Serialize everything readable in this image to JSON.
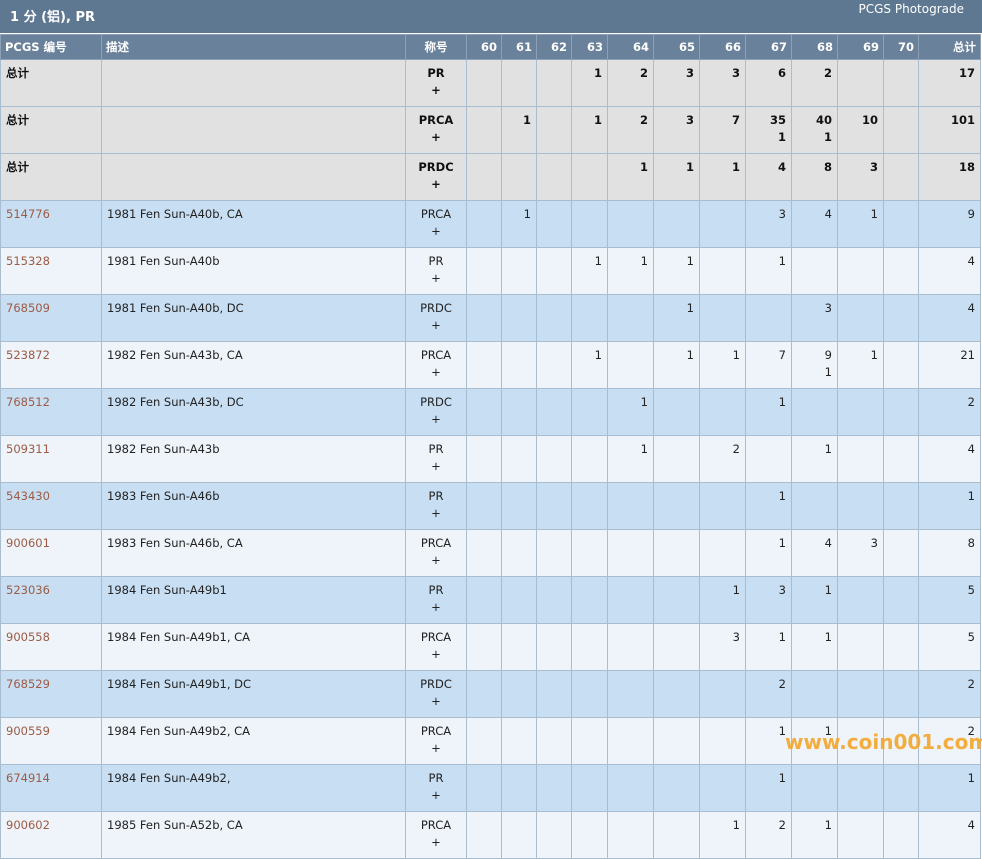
{
  "header": {
    "title": "1 分 (铝), PR",
    "link": "PCGS Photograde"
  },
  "columns": [
    "PCGS 编号",
    "描述",
    "称号",
    60,
    61,
    62,
    63,
    64,
    65,
    66,
    67,
    68,
    69,
    70,
    "总计"
  ],
  "total_rows": [
    {
      "label": "总计",
      "designation": "PR",
      "plus": "+",
      "grades": [
        null,
        null,
        null,
        1,
        2,
        3,
        3,
        6,
        2,
        null,
        null
      ],
      "total": 17
    },
    {
      "label": "总计",
      "designation": "PRCA",
      "plus": "+",
      "grades": [
        null,
        1,
        null,
        1,
        2,
        3,
        7,
        [
          35,
          1
        ],
        [
          40,
          1
        ],
        10,
        null
      ],
      "total": 101
    },
    {
      "label": "总计",
      "designation": "PRDC",
      "plus": "+",
      "grades": [
        null,
        null,
        null,
        null,
        1,
        1,
        1,
        4,
        8,
        3,
        null
      ],
      "total": 18
    }
  ],
  "rows": [
    {
      "code": "514776",
      "description": "1981 Fen Sun-A40b, CA",
      "designation": "PRCA",
      "plus": "+",
      "grades": [
        null,
        1,
        null,
        null,
        null,
        null,
        null,
        3,
        4,
        1,
        null
      ],
      "total": 9
    },
    {
      "code": "515328",
      "description": "1981 Fen Sun-A40b",
      "designation": "PR",
      "plus": "+",
      "grades": [
        null,
        null,
        null,
        1,
        1,
        1,
        null,
        1,
        null,
        null,
        null
      ],
      "total": 4
    },
    {
      "code": "768509",
      "description": "1981 Fen Sun-A40b, DC",
      "designation": "PRDC",
      "plus": "+",
      "grades": [
        null,
        null,
        null,
        null,
        null,
        1,
        null,
        null,
        3,
        null,
        null
      ],
      "total": 4
    },
    {
      "code": "523872",
      "description": "1982 Fen Sun-A43b, CA",
      "designation": "PRCA",
      "plus": "+",
      "grades": [
        null,
        null,
        null,
        1,
        null,
        1,
        1,
        7,
        [
          9,
          1
        ],
        1,
        null
      ],
      "total": 21
    },
    {
      "code": "768512",
      "description": "1982 Fen Sun-A43b, DC",
      "designation": "PRDC",
      "plus": "+",
      "grades": [
        null,
        null,
        null,
        null,
        1,
        null,
        null,
        1,
        null,
        null,
        null
      ],
      "total": 2
    },
    {
      "code": "509311",
      "description": "1982 Fen Sun-A43b",
      "designation": "PR",
      "plus": "+",
      "grades": [
        null,
        null,
        null,
        null,
        1,
        null,
        2,
        null,
        1,
        null,
        null
      ],
      "total": 4
    },
    {
      "code": "543430",
      "description": "1983 Fen Sun-A46b",
      "designation": "PR",
      "plus": "+",
      "grades": [
        null,
        null,
        null,
        null,
        null,
        null,
        null,
        1,
        null,
        null,
        null
      ],
      "total": 1
    },
    {
      "code": "900601",
      "description": "1983 Fen Sun-A46b, CA",
      "designation": "PRCA",
      "plus": "+",
      "grades": [
        null,
        null,
        null,
        null,
        null,
        null,
        null,
        1,
        4,
        3,
        null
      ],
      "total": 8
    },
    {
      "code": "523036",
      "description": "1984 Fen Sun-A49b1",
      "designation": "PR",
      "plus": "+",
      "grades": [
        null,
        null,
        null,
        null,
        null,
        null,
        1,
        3,
        1,
        null,
        null
      ],
      "total": 5
    },
    {
      "code": "900558",
      "description": "1984 Fen Sun-A49b1, CA",
      "designation": "PRCA",
      "plus": "+",
      "grades": [
        null,
        null,
        null,
        null,
        null,
        null,
        3,
        1,
        1,
        null,
        null
      ],
      "total": 5
    },
    {
      "code": "768529",
      "description": "1984 Fen Sun-A49b1, DC",
      "designation": "PRDC",
      "plus": "+",
      "grades": [
        null,
        null,
        null,
        null,
        null,
        null,
        null,
        2,
        null,
        null,
        null
      ],
      "total": 2
    },
    {
      "code": "900559",
      "description": "1984 Fen Sun-A49b2, CA",
      "designation": "PRCA",
      "plus": "+",
      "grades": [
        null,
        null,
        null,
        null,
        null,
        null,
        null,
        1,
        1,
        null,
        null
      ],
      "total": 2
    },
    {
      "code": "674914",
      "description": "1984 Fen Sun-A49b2,",
      "designation": "PR",
      "plus": "+",
      "grades": [
        null,
        null,
        null,
        null,
        null,
        null,
        null,
        1,
        null,
        null,
        null
      ],
      "total": 1
    },
    {
      "code": "900602",
      "description": "1985 Fen Sun-A52b, CA",
      "designation": "PRCA",
      "plus": "+",
      "grades": [
        null,
        null,
        null,
        null,
        null,
        null,
        1,
        2,
        1,
        null,
        null
      ],
      "total": 4
    }
  ],
  "watermark": "www.coin001.com"
}
